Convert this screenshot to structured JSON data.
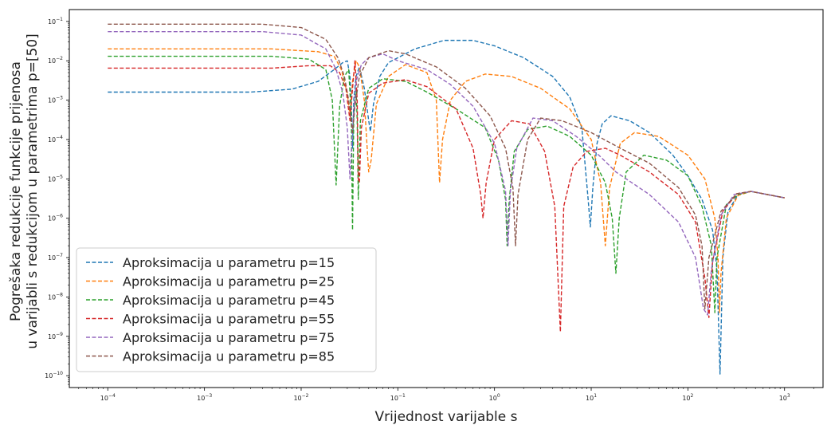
{
  "chart_data": {
    "type": "line",
    "title": "",
    "xlabel": "Vrijednost varijable s",
    "ylabel_lines": [
      "Pogrešaka redukcije funkcije prijenosa",
      "u varijabli s redukcijom u parametrima p=[50]"
    ],
    "xscale": "log",
    "yscale": "log",
    "xlim": [
      4e-05,
      2500
    ],
    "ylim": [
      5e-11,
      0.2
    ],
    "grid": false,
    "legend_position": "lower-left",
    "x_ticks": [
      {
        "value": 0.0001,
        "base": "10",
        "exp": "−4"
      },
      {
        "value": 0.001,
        "base": "10",
        "exp": "−3"
      },
      {
        "value": 0.01,
        "base": "10",
        "exp": "−2"
      },
      {
        "value": 0.1,
        "base": "10",
        "exp": "−1"
      },
      {
        "value": 1,
        "base": "10",
        "exp": "0"
      },
      {
        "value": 10,
        "base": "10",
        "exp": "1"
      },
      {
        "value": 100,
        "base": "10",
        "exp": "2"
      },
      {
        "value": 1000,
        "base": "10",
        "exp": "3"
      }
    ],
    "y_ticks": [
      {
        "value": 1e-10,
        "base": "10",
        "exp": "−10"
      },
      {
        "value": 1e-09,
        "base": "10",
        "exp": "−9"
      },
      {
        "value": 1e-08,
        "base": "10",
        "exp": "−8"
      },
      {
        "value": 1e-07,
        "base": "10",
        "exp": "−7"
      },
      {
        "value": 1e-06,
        "base": "10",
        "exp": "−6"
      },
      {
        "value": 1e-05,
        "base": "10",
        "exp": "−5"
      },
      {
        "value": 0.0001,
        "base": "10",
        "exp": "−4"
      },
      {
        "value": 0.001,
        "base": "10",
        "exp": "−3"
      },
      {
        "value": 0.01,
        "base": "10",
        "exp": "−2"
      },
      {
        "value": 0.1,
        "base": "10",
        "exp": "−1"
      }
    ],
    "series": [
      {
        "name": "Aproksimacija u parametru p=15",
        "color": "#1f77b4",
        "points": [
          [
            0.0001,
            0.0016
          ],
          [
            0.003,
            0.0016
          ],
          [
            0.008,
            0.0019
          ],
          [
            0.015,
            0.003
          ],
          [
            0.022,
            0.006
          ],
          [
            0.027,
            0.009
          ],
          [
            0.03,
            0.01
          ],
          [
            0.032,
            0.004
          ],
          [
            0.033,
            0.0008
          ],
          [
            0.034,
            6e-05
          ],
          [
            0.035,
            0.001
          ],
          [
            0.037,
            0.004
          ],
          [
            0.04,
            0.007
          ],
          [
            0.045,
            0.002
          ],
          [
            0.05,
            0.0003
          ],
          [
            0.052,
            0.00016
          ],
          [
            0.056,
            0.0008
          ],
          [
            0.065,
            0.004
          ],
          [
            0.08,
            0.009
          ],
          [
            0.15,
            0.02
          ],
          [
            0.3,
            0.033
          ],
          [
            0.6,
            0.033
          ],
          [
            1,
            0.024
          ],
          [
            2,
            0.012
          ],
          [
            4,
            0.004
          ],
          [
            6,
            0.0012
          ],
          [
            8,
            0.0002
          ],
          [
            9.3,
            3e-06
          ],
          [
            9.8,
            6e-07
          ],
          [
            10.4,
            6e-06
          ],
          [
            11.5,
            8e-05
          ],
          [
            13,
            0.00025
          ],
          [
            16,
            0.0004
          ],
          [
            25,
            0.0003
          ],
          [
            40,
            0.00015
          ],
          [
            70,
            4e-05
          ],
          [
            100,
            1.2e-05
          ],
          [
            140,
            3e-06
          ],
          [
            180,
            5e-07
          ],
          [
            200,
            5e-08
          ],
          [
            215,
            1.1e-10
          ],
          [
            230,
            1e-07
          ],
          [
            260,
            1.5e-06
          ],
          [
            330,
            4e-06
          ],
          [
            450,
            4.8e-06
          ],
          [
            1000,
            3.3e-06
          ]
        ]
      },
      {
        "name": "Aproksimacija u parametru p=25",
        "color": "#ff7f0e",
        "points": [
          [
            0.0001,
            0.02
          ],
          [
            0.005,
            0.02
          ],
          [
            0.015,
            0.017
          ],
          [
            0.022,
            0.013
          ],
          [
            0.026,
            0.006
          ],
          [
            0.03,
            0.0015
          ],
          [
            0.032,
            0.0004
          ],
          [
            0.034,
            0.003
          ],
          [
            0.037,
            0.01
          ],
          [
            0.04,
            0.007
          ],
          [
            0.045,
            0.001
          ],
          [
            0.049,
            3e-05
          ],
          [
            0.05,
            1.5e-05
          ],
          [
            0.053,
            3e-05
          ],
          [
            0.06,
            0.0008
          ],
          [
            0.08,
            0.004
          ],
          [
            0.12,
            0.008
          ],
          [
            0.2,
            0.005
          ],
          [
            0.25,
            0.001
          ],
          [
            0.27,
            8e-06
          ],
          [
            0.29,
            0.0001
          ],
          [
            0.35,
            0.001
          ],
          [
            0.5,
            0.003
          ],
          [
            0.8,
            0.0046
          ],
          [
            1.5,
            0.004
          ],
          [
            3,
            0.002
          ],
          [
            6,
            0.0006
          ],
          [
            10,
            0.0001
          ],
          [
            12.5,
            8e-06
          ],
          [
            14,
            2e-07
          ],
          [
            15.5,
            6e-06
          ],
          [
            20,
            8e-05
          ],
          [
            28,
            0.00015
          ],
          [
            50,
            0.00012
          ],
          [
            100,
            4e-05
          ],
          [
            150,
            1e-05
          ],
          [
            190,
            1e-06
          ],
          [
            205,
            1e-07
          ],
          [
            212,
            4e-09
          ],
          [
            220,
            4e-08
          ],
          [
            250,
            1e-06
          ],
          [
            330,
            3.8e-06
          ],
          [
            450,
            4.8e-06
          ],
          [
            1000,
            3.3e-06
          ]
        ]
      },
      {
        "name": "Aproksimacija u parametru p=45",
        "color": "#2ca02c",
        "points": [
          [
            0.0001,
            0.013
          ],
          [
            0.005,
            0.013
          ],
          [
            0.012,
            0.011
          ],
          [
            0.018,
            0.006
          ],
          [
            0.021,
            0.001
          ],
          [
            0.023,
            7e-06
          ],
          [
            0.025,
            0.0007
          ],
          [
            0.028,
            0.004
          ],
          [
            0.031,
            0.006
          ],
          [
            0.033,
            0.0004
          ],
          [
            0.034,
            5e-07
          ],
          [
            0.035,
            0.0004
          ],
          [
            0.037,
            0.002
          ],
          [
            0.038,
            0.0003
          ],
          [
            0.039,
            3e-06
          ],
          [
            0.041,
            0.0003
          ],
          [
            0.05,
            0.002
          ],
          [
            0.07,
            0.0035
          ],
          [
            0.12,
            0.003
          ],
          [
            0.2,
            0.0016
          ],
          [
            0.4,
            0.0006
          ],
          [
            0.8,
            0.0002
          ],
          [
            1.1,
            3e-05
          ],
          [
            1.3,
            3e-06
          ],
          [
            1.35,
            2e-07
          ],
          [
            1.42,
            3e-06
          ],
          [
            1.6,
            5e-05
          ],
          [
            2.2,
            0.00018
          ],
          [
            3.5,
            0.00022
          ],
          [
            6,
            0.00012
          ],
          [
            10,
            4e-05
          ],
          [
            14,
            8e-06
          ],
          [
            16.5,
            1e-06
          ],
          [
            18,
            4e-08
          ],
          [
            19.5,
            1e-06
          ],
          [
            23,
            1.5e-05
          ],
          [
            35,
            4e-05
          ],
          [
            60,
            3e-05
          ],
          [
            100,
            1.2e-05
          ],
          [
            140,
            2e-06
          ],
          [
            175,
            2e-07
          ],
          [
            190,
            4e-09
          ],
          [
            200,
            1e-07
          ],
          [
            250,
            2.2e-06
          ],
          [
            330,
            4e-06
          ],
          [
            450,
            4.8e-06
          ],
          [
            1000,
            3.3e-06
          ]
        ]
      },
      {
        "name": "Aproksimacija u parametru p=55",
        "color": "#d62728",
        "points": [
          [
            0.0001,
            0.0065
          ],
          [
            0.005,
            0.0065
          ],
          [
            0.012,
            0.0075
          ],
          [
            0.02,
            0.0075
          ],
          [
            0.025,
            0.005
          ],
          [
            0.029,
            0.002
          ],
          [
            0.032,
            0.0003
          ],
          [
            0.034,
            0.002
          ],
          [
            0.036,
            0.01
          ],
          [
            0.038,
            0.001
          ],
          [
            0.039,
            1e-05
          ],
          [
            0.04,
            8e-06
          ],
          [
            0.042,
            0.0002
          ],
          [
            0.05,
            0.0015
          ],
          [
            0.07,
            0.0027
          ],
          [
            0.12,
            0.0033
          ],
          [
            0.2,
            0.0022
          ],
          [
            0.4,
            0.0006
          ],
          [
            0.6,
            6e-05
          ],
          [
            0.72,
            4e-06
          ],
          [
            0.76,
            1e-06
          ],
          [
            0.82,
            8e-06
          ],
          [
            1,
            0.0001
          ],
          [
            1.5,
            0.0003
          ],
          [
            2.3,
            0.00025
          ],
          [
            3.3,
            5e-05
          ],
          [
            4.2,
            2e-06
          ],
          [
            4.8,
            1.3e-09
          ],
          [
            5.2,
            2e-06
          ],
          [
            6.5,
            2e-05
          ],
          [
            9,
            5e-05
          ],
          [
            14,
            6e-05
          ],
          [
            20,
            4e-05
          ],
          [
            40,
            1.5e-05
          ],
          [
            80,
            4e-06
          ],
          [
            120,
            8e-07
          ],
          [
            150,
            3e-08
          ],
          [
            165,
            3e-09
          ],
          [
            180,
            8e-08
          ],
          [
            230,
            1.5e-06
          ],
          [
            320,
            4.2e-06
          ],
          [
            450,
            4.8e-06
          ],
          [
            1000,
            3.3e-06
          ]
        ]
      },
      {
        "name": "Aproksimacija u parametru p=75",
        "color": "#9467bd",
        "points": [
          [
            0.0001,
            0.055
          ],
          [
            0.004,
            0.055
          ],
          [
            0.01,
            0.045
          ],
          [
            0.018,
            0.02
          ],
          [
            0.023,
            0.006
          ],
          [
            0.027,
            0.0015
          ],
          [
            0.03,
            0.0002
          ],
          [
            0.032,
            1e-05
          ],
          [
            0.034,
            0.0002
          ],
          [
            0.037,
            0.003
          ],
          [
            0.042,
            0.008
          ],
          [
            0.05,
            0.012
          ],
          [
            0.07,
            0.015
          ],
          [
            0.1,
            0.01
          ],
          [
            0.2,
            0.006
          ],
          [
            0.35,
            0.0025
          ],
          [
            0.6,
            0.0007
          ],
          [
            1,
            8e-05
          ],
          [
            1.3,
            5e-06
          ],
          [
            1.38,
            2e-07
          ],
          [
            1.46,
            5e-06
          ],
          [
            1.7,
            6e-05
          ],
          [
            2.5,
            0.00035
          ],
          [
            4,
            0.0003
          ],
          [
            7,
            0.00012
          ],
          [
            12,
            4e-05
          ],
          [
            18,
            1.5e-05
          ],
          [
            40,
            4e-06
          ],
          [
            80,
            8e-07
          ],
          [
            120,
            1e-07
          ],
          [
            145,
            5e-09
          ],
          [
            160,
            3.5e-09
          ],
          [
            175,
            5e-08
          ],
          [
            220,
            1.2e-06
          ],
          [
            300,
            4e-06
          ],
          [
            450,
            4.8e-06
          ],
          [
            1000,
            3.3e-06
          ]
        ]
      },
      {
        "name": "Aproksimacija u parametru p=85",
        "color": "#8c564b",
        "points": [
          [
            0.0001,
            0.085
          ],
          [
            0.004,
            0.085
          ],
          [
            0.01,
            0.07
          ],
          [
            0.018,
            0.035
          ],
          [
            0.024,
            0.012
          ],
          [
            0.028,
            0.004
          ],
          [
            0.031,
            0.001
          ],
          [
            0.034,
            0.00015
          ],
          [
            0.036,
            0.0007
          ],
          [
            0.04,
            0.004
          ],
          [
            0.05,
            0.012
          ],
          [
            0.08,
            0.018
          ],
          [
            0.12,
            0.015
          ],
          [
            0.25,
            0.007
          ],
          [
            0.5,
            0.002
          ],
          [
            0.9,
            0.0004
          ],
          [
            1.3,
            6e-05
          ],
          [
            1.55,
            6e-06
          ],
          [
            1.65,
            2e-07
          ],
          [
            1.75,
            4e-06
          ],
          [
            2.2,
            0.0001
          ],
          [
            3,
            0.00035
          ],
          [
            5,
            0.0003
          ],
          [
            10,
            0.00015
          ],
          [
            20,
            6e-05
          ],
          [
            40,
            2.5e-05
          ],
          [
            80,
            6e-06
          ],
          [
            120,
            1.2e-06
          ],
          [
            140,
            2e-07
          ],
          [
            150,
            5e-09
          ],
          [
            165,
            1e-07
          ],
          [
            220,
            1.5e-06
          ],
          [
            320,
            4.2e-06
          ],
          [
            450,
            4.8e-06
          ],
          [
            1000,
            3.3e-06
          ]
        ]
      }
    ]
  }
}
